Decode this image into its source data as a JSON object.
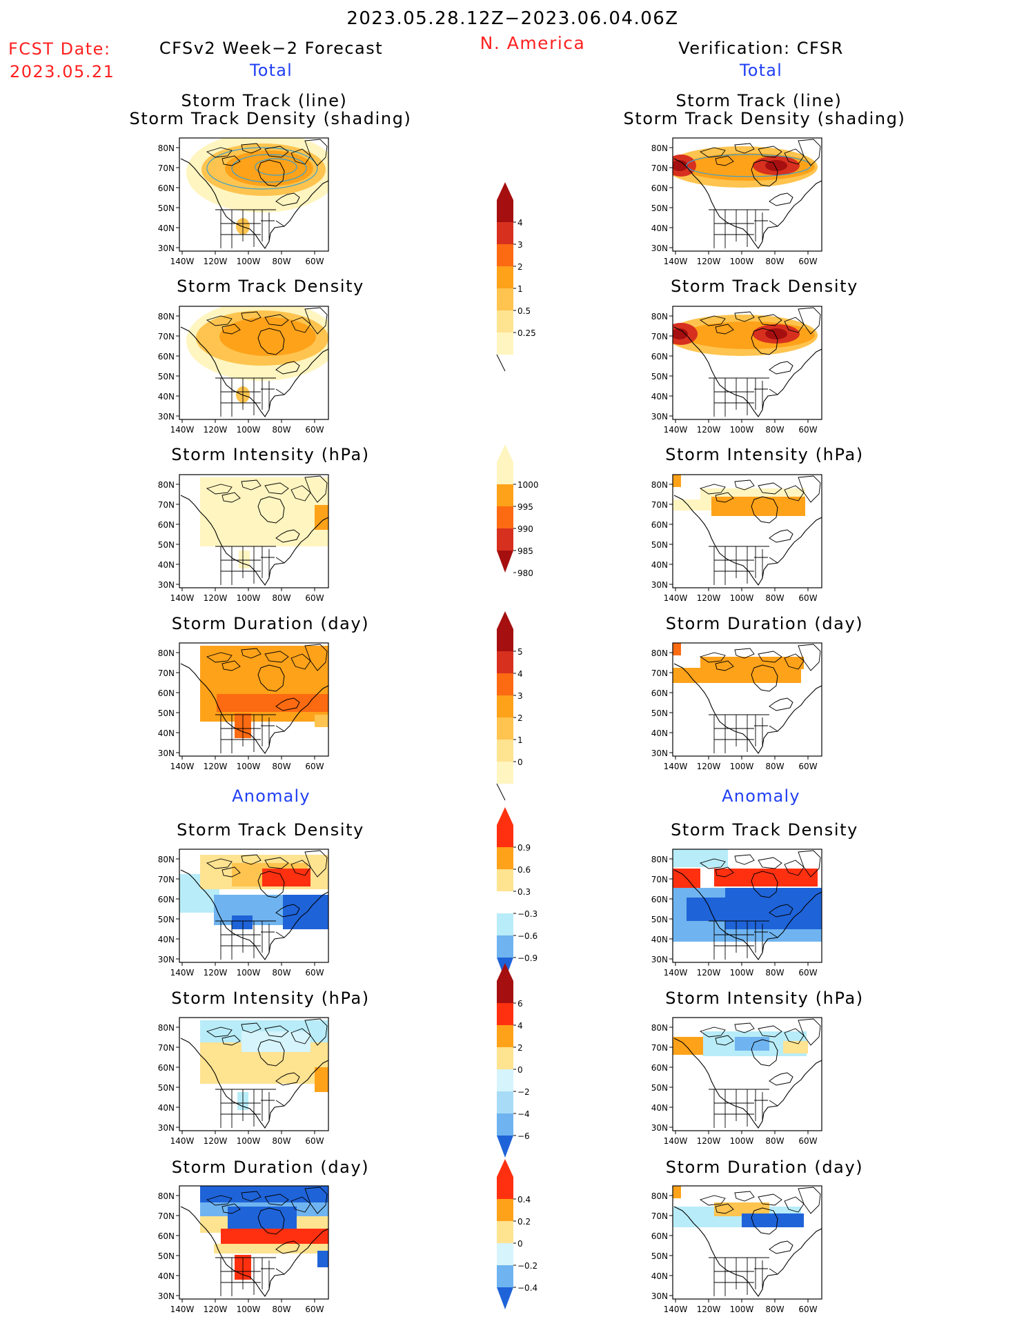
{
  "header": {
    "title": "2023.05.28.12Z−2023.06.04.06Z",
    "region": "N. America",
    "fcst_label": "FCST Date:",
    "fcst_date": "2023.05.21",
    "left_title": "CFSv2 Week−2 Forecast",
    "right_title": "Verification: CFSR"
  },
  "sections": {
    "total": "Total",
    "anomaly": "Anomaly"
  },
  "panel_titles": {
    "track_line": "Storm Track (line)",
    "track_shading": "Storm Track Density (shading)",
    "density": "Storm Track Density",
    "intensity": "Storm Intensity (hPa)",
    "duration": "Storm Duration (day)"
  },
  "axes": {
    "lat": [
      "80N",
      "70N",
      "60N",
      "50N",
      "40N",
      "30N"
    ],
    "lon": [
      "140W",
      "120W",
      "100W",
      "80W",
      "60W"
    ]
  },
  "colorbars": [
    {
      "id": "density-total",
      "labels": [
        "4",
        "3",
        "2",
        "1",
        "0.5",
        "0.25"
      ],
      "colors": [
        "#a50f0f",
        "#d7301f",
        "#fc6a12",
        "#fea21a",
        "#fec44f",
        "#fee391",
        "#fff5c0"
      ],
      "low_open": true
    },
    {
      "id": "intensity-total",
      "labels": [
        "1000",
        "995",
        "990",
        "985",
        "980"
      ],
      "colors": [
        "#fff5c0",
        "#fea21a",
        "#fc6a12",
        "#d7301f",
        "#a50f0f"
      ],
      "low_open": false
    },
    {
      "id": "duration-total",
      "labels": [
        "5",
        "4",
        "3",
        "2",
        "1",
        "0"
      ],
      "colors": [
        "#a50f0f",
        "#d7301f",
        "#fc6a12",
        "#fea21a",
        "#fec44f",
        "#fee391",
        "#fff5c0"
      ],
      "low_open": true
    },
    {
      "id": "density-anom",
      "labels": [
        "0.9",
        "0.6",
        "0.3",
        "−0.3",
        "−0.6",
        "−0.9"
      ],
      "colors": [
        "#ff3010",
        "#fea21a",
        "#fee391",
        "#ffffff",
        "#b8ecf8",
        "#6fb4f0",
        "#1f63d8"
      ],
      "low_open": false
    },
    {
      "id": "intensity-anom",
      "labels": [
        "6",
        "4",
        "2",
        "0",
        "−2",
        "−4",
        "−6"
      ],
      "colors": [
        "#a50f0f",
        "#ff3010",
        "#fea21a",
        "#fee391",
        "#d6f4fb",
        "#a8dcf6",
        "#6fb4f0",
        "#1f63d8"
      ],
      "low_open": false
    },
    {
      "id": "duration-anom",
      "labels": [
        "0.4",
        "0.2",
        "0",
        "−0.2",
        "−0.4"
      ],
      "colors": [
        "#ff3010",
        "#fea21a",
        "#fee391",
        "#d6f4fb",
        "#6fb4f0",
        "#1f63d8"
      ],
      "low_open": false
    }
  ],
  "colors": {
    "red": "#ff2020",
    "blue": "#1f3ff5"
  }
}
